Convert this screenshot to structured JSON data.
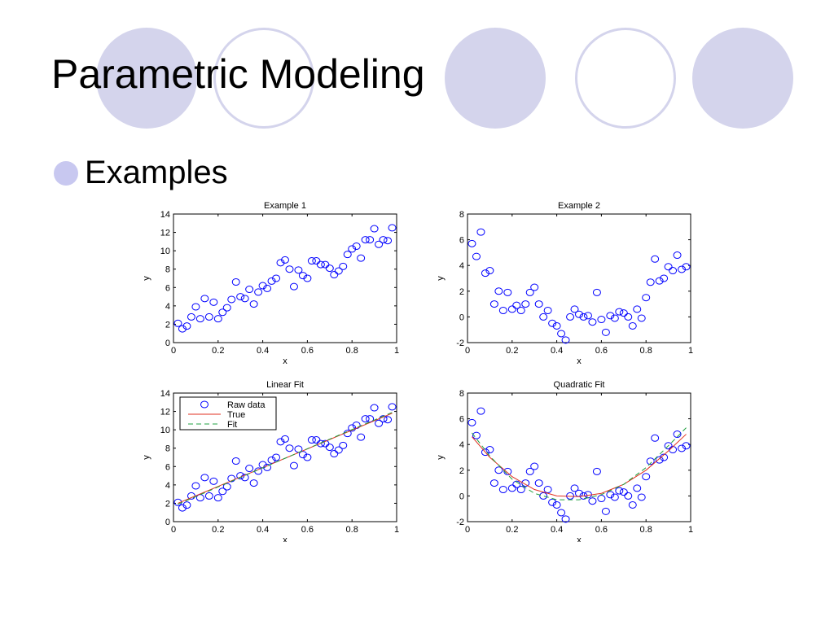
{
  "slide": {
    "title": "Parametric Modeling",
    "bullet": "Examples",
    "theme_colors": {
      "circle_fill": "#d4d4ec",
      "bullet": "#c8c8f0"
    }
  },
  "chart_data": [
    {
      "type": "scatter",
      "title": "Example 1",
      "xlabel": "x",
      "ylabel": "y",
      "xlim": [
        0,
        1
      ],
      "ylim": [
        0,
        14
      ],
      "xticks": [
        0,
        0.2,
        0.4,
        0.6,
        0.8,
        1
      ],
      "yticks": [
        0,
        2,
        4,
        6,
        8,
        10,
        12,
        14
      ],
      "grid": false,
      "series": [
        {
          "marker": "circle",
          "color": "#0000ff",
          "x": [
            0.02,
            0.04,
            0.06,
            0.08,
            0.1,
            0.12,
            0.14,
            0.16,
            0.18,
            0.2,
            0.22,
            0.24,
            0.26,
            0.28,
            0.3,
            0.32,
            0.34,
            0.36,
            0.38,
            0.4,
            0.42,
            0.44,
            0.46,
            0.48,
            0.5,
            0.52,
            0.54,
            0.56,
            0.58,
            0.6,
            0.62,
            0.64,
            0.66,
            0.68,
            0.7,
            0.72,
            0.74,
            0.76,
            0.78,
            0.8,
            0.82,
            0.84,
            0.86,
            0.88,
            0.9,
            0.92,
            0.94,
            0.96,
            0.98
          ],
          "y": [
            2.1,
            1.5,
            1.8,
            2.8,
            3.9,
            2.6,
            4.8,
            2.8,
            4.4,
            2.6,
            3.3,
            3.8,
            4.7,
            6.6,
            5.0,
            4.8,
            5.8,
            4.2,
            5.5,
            6.2,
            5.9,
            6.7,
            7.0,
            8.7,
            9.0,
            8.0,
            6.1,
            7.9,
            7.3,
            7.0,
            8.9,
            8.9,
            8.5,
            8.5,
            8.1,
            7.4,
            7.8,
            8.3,
            9.6,
            10.2,
            10.5,
            9.2,
            11.2,
            11.2,
            12.4,
            10.7,
            11.2,
            11.1,
            12.5
          ]
        }
      ]
    },
    {
      "type": "scatter",
      "title": "Example 2",
      "xlabel": "x",
      "ylabel": "y",
      "xlim": [
        0,
        1
      ],
      "ylim": [
        -2,
        8
      ],
      "xticks": [
        0,
        0.2,
        0.4,
        0.6,
        0.8,
        1
      ],
      "yticks": [
        -2,
        0,
        2,
        4,
        6,
        8
      ],
      "grid": false,
      "series": [
        {
          "marker": "circle",
          "color": "#0000ff",
          "x": [
            0.02,
            0.04,
            0.06,
            0.08,
            0.1,
            0.12,
            0.14,
            0.16,
            0.18,
            0.2,
            0.22,
            0.24,
            0.26,
            0.28,
            0.3,
            0.32,
            0.34,
            0.36,
            0.38,
            0.4,
            0.42,
            0.44,
            0.46,
            0.48,
            0.5,
            0.52,
            0.54,
            0.56,
            0.58,
            0.6,
            0.62,
            0.64,
            0.66,
            0.68,
            0.7,
            0.72,
            0.74,
            0.76,
            0.78,
            0.8,
            0.82,
            0.84,
            0.86,
            0.88,
            0.9,
            0.92,
            0.94,
            0.96,
            0.98
          ],
          "y": [
            5.7,
            4.7,
            6.6,
            3.4,
            3.6,
            1.0,
            2.0,
            0.5,
            1.9,
            0.6,
            0.9,
            0.5,
            1.0,
            1.9,
            2.3,
            1.0,
            0.0,
            0.5,
            -0.5,
            -0.7,
            -1.3,
            -1.8,
            0.0,
            0.6,
            0.2,
            0.0,
            0.1,
            -0.4,
            1.9,
            -0.2,
            -1.2,
            0.1,
            -0.1,
            0.4,
            0.3,
            0.0,
            -0.7,
            0.6,
            -0.1,
            1.5,
            2.7,
            4.5,
            2.8,
            3.0,
            3.9,
            3.6,
            4.8,
            3.7,
            3.9
          ]
        }
      ]
    },
    {
      "type": "line",
      "title": "Linear Fit",
      "xlabel": "x",
      "ylabel": "y",
      "xlim": [
        0,
        1
      ],
      "ylim": [
        0,
        14
      ],
      "xticks": [
        0,
        0.2,
        0.4,
        0.6,
        0.8,
        1
      ],
      "yticks": [
        0,
        2,
        4,
        6,
        8,
        10,
        12,
        14
      ],
      "grid": false,
      "legend": {
        "position": "top-left",
        "entries": [
          "Raw data",
          "True",
          "Fit"
        ]
      },
      "series": [
        {
          "name": "Raw data",
          "style": "markers",
          "marker": "circle",
          "color": "#0000ff",
          "x": [
            0.02,
            0.04,
            0.06,
            0.08,
            0.1,
            0.12,
            0.14,
            0.16,
            0.18,
            0.2,
            0.22,
            0.24,
            0.26,
            0.28,
            0.3,
            0.32,
            0.34,
            0.36,
            0.38,
            0.4,
            0.42,
            0.44,
            0.46,
            0.48,
            0.5,
            0.52,
            0.54,
            0.56,
            0.58,
            0.6,
            0.62,
            0.64,
            0.66,
            0.68,
            0.7,
            0.72,
            0.74,
            0.76,
            0.78,
            0.8,
            0.82,
            0.84,
            0.86,
            0.88,
            0.9,
            0.92,
            0.94,
            0.96,
            0.98
          ],
          "y": [
            2.1,
            1.5,
            1.8,
            2.8,
            3.9,
            2.6,
            4.8,
            2.8,
            4.4,
            2.6,
            3.3,
            3.8,
            4.7,
            6.6,
            5.0,
            4.8,
            5.8,
            4.2,
            5.5,
            6.2,
            5.9,
            6.7,
            7.0,
            8.7,
            9.0,
            8.0,
            6.1,
            7.9,
            7.3,
            7.0,
            8.9,
            8.9,
            8.5,
            8.5,
            8.1,
            7.4,
            7.8,
            8.3,
            9.6,
            10.2,
            10.5,
            9.2,
            11.2,
            11.2,
            12.4,
            10.7,
            11.2,
            11.1,
            12.5
          ]
        },
        {
          "name": "True",
          "style": "solid",
          "color": "#e03020",
          "x": [
            0.02,
            0.98
          ],
          "y": [
            2.0,
            11.8
          ]
        },
        {
          "name": "Fit",
          "style": "dashed",
          "color": "#20a040",
          "x": [
            0.02,
            0.98
          ],
          "y": [
            1.9,
            11.9
          ]
        }
      ]
    },
    {
      "type": "line",
      "title": "Quadratic Fit",
      "xlabel": "x",
      "ylabel": "y",
      "xlim": [
        0,
        1
      ],
      "ylim": [
        -2,
        8
      ],
      "xticks": [
        0,
        0.2,
        0.4,
        0.6,
        0.8,
        1
      ],
      "yticks": [
        -2,
        0,
        2,
        4,
        6,
        8
      ],
      "grid": false,
      "series": [
        {
          "name": "Raw data",
          "style": "markers",
          "marker": "circle",
          "color": "#0000ff",
          "x": [
            0.02,
            0.04,
            0.06,
            0.08,
            0.1,
            0.12,
            0.14,
            0.16,
            0.18,
            0.2,
            0.22,
            0.24,
            0.26,
            0.28,
            0.3,
            0.32,
            0.34,
            0.36,
            0.38,
            0.4,
            0.42,
            0.44,
            0.46,
            0.48,
            0.5,
            0.52,
            0.54,
            0.56,
            0.58,
            0.6,
            0.62,
            0.64,
            0.66,
            0.68,
            0.7,
            0.72,
            0.74,
            0.76,
            0.78,
            0.8,
            0.82,
            0.84,
            0.86,
            0.88,
            0.9,
            0.92,
            0.94,
            0.96,
            0.98
          ],
          "y": [
            5.7,
            4.7,
            6.6,
            3.4,
            3.6,
            1.0,
            2.0,
            0.5,
            1.9,
            0.6,
            0.9,
            0.5,
            1.0,
            1.9,
            2.3,
            1.0,
            0.0,
            0.5,
            -0.5,
            -0.7,
            -1.3,
            -1.8,
            0.0,
            0.6,
            0.2,
            0.0,
            0.1,
            -0.4,
            1.9,
            -0.2,
            -1.2,
            0.1,
            -0.1,
            0.4,
            0.3,
            0.0,
            -0.7,
            0.6,
            -0.1,
            1.5,
            2.7,
            4.5,
            2.8,
            3.0,
            3.9,
            3.6,
            4.8,
            3.7,
            3.9
          ]
        },
        {
          "name": "True",
          "style": "solid",
          "color": "#e03020",
          "x": [
            0.02,
            0.1,
            0.2,
            0.3,
            0.4,
            0.5,
            0.6,
            0.7,
            0.8,
            0.9,
            0.98
          ],
          "y": [
            4.6,
            3.0,
            1.5,
            0.5,
            0.0,
            -0.05,
            0.2,
            0.9,
            2.0,
            3.5,
            4.8
          ]
        },
        {
          "name": "Fit",
          "style": "dashed",
          "color": "#20a040",
          "x": [
            0.02,
            0.1,
            0.2,
            0.3,
            0.4,
            0.5,
            0.6,
            0.7,
            0.8,
            0.9,
            0.98
          ],
          "y": [
            4.9,
            3.1,
            1.3,
            0.2,
            -0.3,
            -0.3,
            0.1,
            0.9,
            2.2,
            3.9,
            5.3
          ]
        }
      ]
    }
  ]
}
